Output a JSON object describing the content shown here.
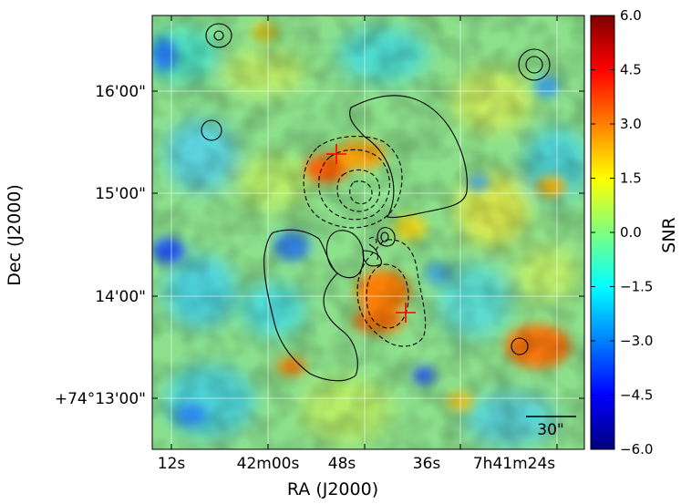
{
  "chart_data": {
    "type": "heatmap",
    "xlabel": "RA (J2000)",
    "ylabel": "Dec (J2000)",
    "x_ticks": [
      "12s",
      "42m00s",
      "48s",
      "36s",
      "7h41m24s"
    ],
    "y_ticks": [
      "16'00\"",
      "15'00\"",
      "14'00\"",
      "+74°13'00\""
    ],
    "colorbar": {
      "label": "SNR",
      "range": [
        -6.0,
        6.0
      ],
      "ticks": [
        "6.0",
        "4.5",
        "3.0",
        "1.5",
        "0.0",
        "−1.5",
        "−3.0",
        "−4.5",
        "−6.0"
      ],
      "tick_values": [
        6.0,
        4.5,
        3.0,
        1.5,
        0.0,
        -1.5,
        -3.0,
        -4.5,
        -6.0
      ],
      "colormap": "jet"
    },
    "grid": true,
    "scale_bar": {
      "label": "30\""
    },
    "markers": [
      {
        "type": "cross",
        "color": "#ff0000",
        "ra": "7h41m49s",
        "dec": "+74°15'20\""
      },
      {
        "type": "cross",
        "color": "#ff0000",
        "ra": "7h41m40s",
        "dec": "+74°13'50\""
      }
    ],
    "contours": {
      "solid": "positive",
      "dashed": "negative"
    }
  }
}
